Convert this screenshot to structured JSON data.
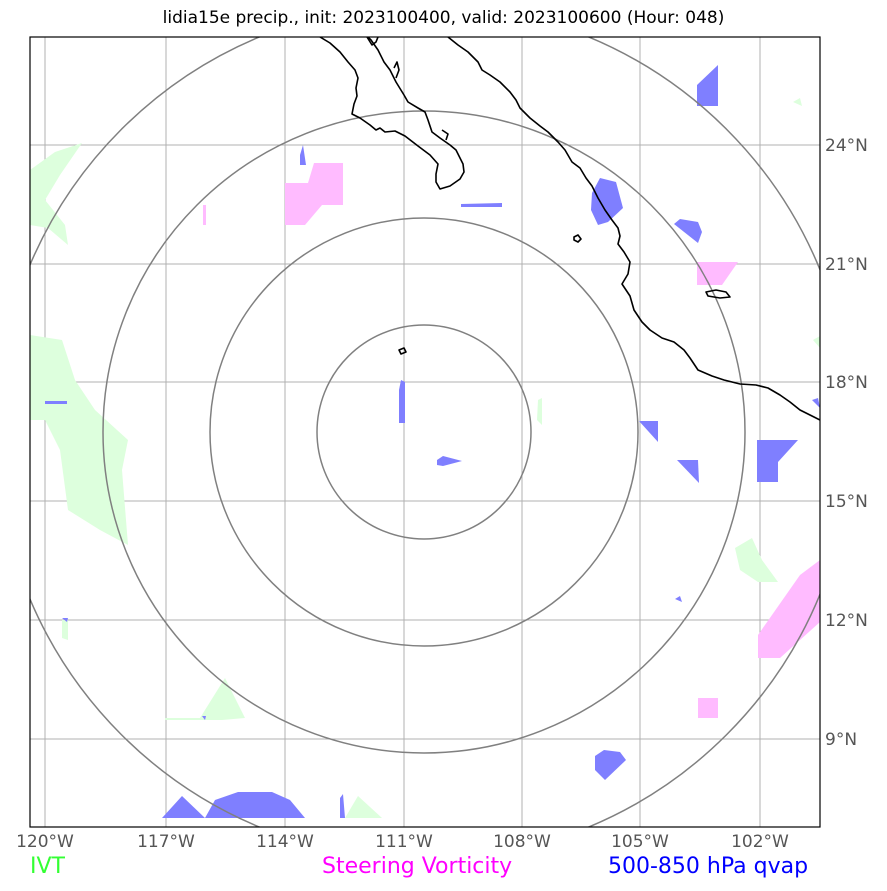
{
  "title": "lidia15e precip., init: 2023100400, valid: 2023100600 (Hour: 048)",
  "axes": {
    "lon_ticks": [
      "120°W",
      "117°W",
      "114°W",
      "111°W",
      "108°W",
      "105°W",
      "102°W"
    ],
    "lat_ticks": [
      "24°N",
      "21°N",
      "18°N",
      "15°N",
      "12°N",
      "9°N"
    ],
    "lon_range": [
      -120.4,
      -100.4
    ],
    "lat_range": [
      7.0,
      26.8
    ]
  },
  "legend": [
    {
      "label": "IVT",
      "color": "#33ff33"
    },
    {
      "label": "Steering Vorticity",
      "color": "#ff00ff"
    },
    {
      "label": "500-850 hPa qvap",
      "color": "#0000ff"
    }
  ],
  "map": {
    "storm_center": {
      "lon": -110.5,
      "lat": 16.8
    },
    "range_rings": 4,
    "ring_color": "#808080",
    "grid_color": "#b0b0b0",
    "fill_colors": {
      "ivt": "#ddffdd",
      "vorticity": "#ffbbff",
      "qvap": "#7f7fff"
    }
  }
}
